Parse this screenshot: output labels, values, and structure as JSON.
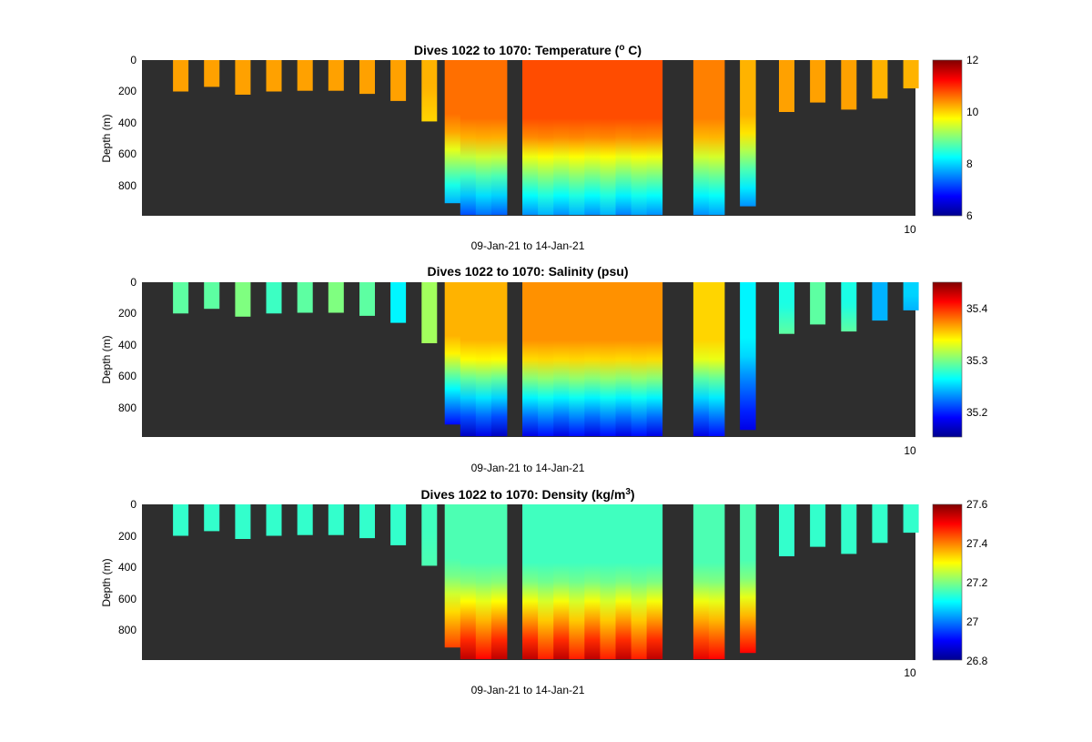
{
  "chart_data": [
    {
      "type": "heatmap",
      "title": "Dives 1022 to 1070: Temperature (",
      "title_sup": "o",
      "title_end": " C)",
      "xlabel": "09-Jan-21 to 14-Jan-21",
      "ylabel": "Depth (m)",
      "y_ticks": [
        "0",
        "200",
        "400",
        "600",
        "800"
      ],
      "ylim": [
        0,
        990
      ],
      "colorbar": {
        "ticks": [
          "6",
          "8",
          "10",
          "12"
        ],
        "range": [
          6,
          12
        ]
      },
      "x_tick_label": "10",
      "columns": [
        {
          "x": 0.25,
          "depth": 200,
          "surf": 10.3,
          "deep": 10.3
        },
        {
          "x": 0.75,
          "depth": 170,
          "surf": 10.3,
          "deep": 10.3
        },
        {
          "x": 1.25,
          "depth": 220,
          "surf": 10.3,
          "deep": 10.3
        },
        {
          "x": 1.75,
          "depth": 200,
          "surf": 10.3,
          "deep": 10.3
        },
        {
          "x": 2.25,
          "depth": 195,
          "surf": 10.3,
          "deep": 10.3
        },
        {
          "x": 2.75,
          "depth": 195,
          "surf": 10.3,
          "deep": 10.3
        },
        {
          "x": 3.25,
          "depth": 215,
          "surf": 10.3,
          "deep": 10.3
        },
        {
          "x": 3.75,
          "depth": 260,
          "surf": 10.3,
          "deep": 10.3
        },
        {
          "x": 4.25,
          "depth": 390,
          "surf": 10.2,
          "deep": 10.0
        },
        {
          "x": 4.75,
          "depth": 910,
          "surf": 10.6,
          "deep": 7.8
        },
        {
          "x": 5.0,
          "depth": 985,
          "surf": 10.6,
          "deep": 7.2
        },
        {
          "x": 5.25,
          "depth": 985,
          "surf": 10.6,
          "deep": 7.4
        },
        {
          "x": 5.5,
          "depth": 985,
          "surf": 10.6,
          "deep": 7.3
        },
        {
          "x": 6.0,
          "depth": 985,
          "surf": 10.8,
          "deep": 7.6
        },
        {
          "x": 6.25,
          "depth": 985,
          "surf": 10.8,
          "deep": 7.8
        },
        {
          "x": 6.5,
          "depth": 985,
          "surf": 10.8,
          "deep": 7.6
        },
        {
          "x": 6.75,
          "depth": 985,
          "surf": 10.8,
          "deep": 7.8
        },
        {
          "x": 7.0,
          "depth": 985,
          "surf": 10.8,
          "deep": 7.6
        },
        {
          "x": 7.25,
          "depth": 985,
          "surf": 10.8,
          "deep": 7.8
        },
        {
          "x": 7.5,
          "depth": 985,
          "surf": 10.8,
          "deep": 7.5
        },
        {
          "x": 7.75,
          "depth": 985,
          "surf": 10.8,
          "deep": 7.7
        },
        {
          "x": 8.0,
          "depth": 985,
          "surf": 10.8,
          "deep": 7.6
        },
        {
          "x": 8.75,
          "depth": 985,
          "surf": 10.5,
          "deep": 7.6
        },
        {
          "x": 9.0,
          "depth": 985,
          "surf": 10.5,
          "deep": 7.7
        },
        {
          "x": 9.5,
          "depth": 930,
          "surf": 10.2,
          "deep": 7.6
        },
        {
          "x": 10.0,
          "depth": 330,
          "surf": 10.3,
          "deep": 10.3
        },
        {
          "x": 10.5,
          "depth": 270,
          "surf": 10.3,
          "deep": 10.3
        },
        {
          "x": 11.0,
          "depth": 315,
          "surf": 10.3,
          "deep": 10.3
        },
        {
          "x": 11.5,
          "depth": 245,
          "surf": 10.2,
          "deep": 10.2
        },
        {
          "x": 12.0,
          "depth": 180,
          "surf": 10.2,
          "deep": 10.2
        }
      ]
    },
    {
      "type": "heatmap",
      "title": "Dives 1022 to 1070: Salinity (psu)",
      "xlabel": "09-Jan-21 to 14-Jan-21",
      "ylabel": "Depth (m)",
      "y_ticks": [
        "0",
        "200",
        "400",
        "600",
        "800"
      ],
      "ylim": [
        0,
        990
      ],
      "colorbar": {
        "ticks": [
          "35.2",
          "35.3",
          "35.4"
        ],
        "range": [
          35.15,
          35.45
        ]
      },
      "x_tick_label": "10",
      "columns": [
        {
          "x": 0.25,
          "depth": 200,
          "surf": 35.29,
          "deep": 35.29
        },
        {
          "x": 0.75,
          "depth": 170,
          "surf": 35.29,
          "deep": 35.29
        },
        {
          "x": 1.25,
          "depth": 220,
          "surf": 35.3,
          "deep": 35.3
        },
        {
          "x": 1.75,
          "depth": 200,
          "surf": 35.28,
          "deep": 35.28
        },
        {
          "x": 2.25,
          "depth": 195,
          "surf": 35.29,
          "deep": 35.29
        },
        {
          "x": 2.75,
          "depth": 195,
          "surf": 35.3,
          "deep": 35.3
        },
        {
          "x": 3.25,
          "depth": 215,
          "surf": 35.29,
          "deep": 35.29
        },
        {
          "x": 3.75,
          "depth": 260,
          "surf": 35.26,
          "deep": 35.26
        },
        {
          "x": 4.25,
          "depth": 390,
          "surf": 35.31,
          "deep": 35.31
        },
        {
          "x": 4.75,
          "depth": 910,
          "surf": 35.36,
          "deep": 35.19
        },
        {
          "x": 5.0,
          "depth": 985,
          "surf": 35.36,
          "deep": 35.17
        },
        {
          "x": 5.25,
          "depth": 985,
          "surf": 35.36,
          "deep": 35.18
        },
        {
          "x": 5.5,
          "depth": 985,
          "surf": 35.36,
          "deep": 35.17
        },
        {
          "x": 6.0,
          "depth": 985,
          "surf": 35.37,
          "deep": 35.18
        },
        {
          "x": 6.25,
          "depth": 985,
          "surf": 35.37,
          "deep": 35.19
        },
        {
          "x": 6.5,
          "depth": 985,
          "surf": 35.37,
          "deep": 35.18
        },
        {
          "x": 6.75,
          "depth": 985,
          "surf": 35.37,
          "deep": 35.19
        },
        {
          "x": 7.0,
          "depth": 985,
          "surf": 35.37,
          "deep": 35.18
        },
        {
          "x": 7.25,
          "depth": 985,
          "surf": 35.37,
          "deep": 35.19
        },
        {
          "x": 7.5,
          "depth": 985,
          "surf": 35.37,
          "deep": 35.18
        },
        {
          "x": 7.75,
          "depth": 985,
          "surf": 35.37,
          "deep": 35.19
        },
        {
          "x": 8.0,
          "depth": 985,
          "surf": 35.37,
          "deep": 35.18
        },
        {
          "x": 8.75,
          "depth": 985,
          "surf": 35.35,
          "deep": 35.18
        },
        {
          "x": 9.0,
          "depth": 985,
          "surf": 35.35,
          "deep": 35.19
        },
        {
          "x": 9.5,
          "depth": 945,
          "surf": 35.26,
          "deep": 35.18
        },
        {
          "x": 10.0,
          "depth": 330,
          "surf": 35.27,
          "deep": 35.29
        },
        {
          "x": 10.5,
          "depth": 270,
          "surf": 35.29,
          "deep": 35.29
        },
        {
          "x": 11.0,
          "depth": 315,
          "surf": 35.27,
          "deep": 35.29
        },
        {
          "x": 11.5,
          "depth": 245,
          "surf": 35.24,
          "deep": 35.24
        },
        {
          "x": 12.0,
          "depth": 180,
          "surf": 35.25,
          "deep": 35.24
        }
      ]
    },
    {
      "type": "heatmap",
      "title": "Dives 1022 to 1070: Density (kg/m",
      "title_sup": "3",
      "title_end": ")",
      "xlabel": "09-Jan-21 to 14-Jan-21",
      "ylabel": "Depth (m)",
      "y_ticks": [
        "0",
        "200",
        "400",
        "600",
        "800"
      ],
      "ylim": [
        0,
        990
      ],
      "colorbar": {
        "ticks": [
          "26.8",
          "27",
          "27.2",
          "27.4",
          "27.6"
        ],
        "range": [
          26.8,
          27.6
        ]
      },
      "x_tick_label": "10",
      "columns": [
        {
          "x": 0.25,
          "depth": 200,
          "surf": 27.14,
          "deep": 27.14
        },
        {
          "x": 0.75,
          "depth": 170,
          "surf": 27.14,
          "deep": 27.14
        },
        {
          "x": 1.25,
          "depth": 220,
          "surf": 27.14,
          "deep": 27.14
        },
        {
          "x": 1.75,
          "depth": 200,
          "surf": 27.14,
          "deep": 27.14
        },
        {
          "x": 2.25,
          "depth": 195,
          "surf": 27.14,
          "deep": 27.14
        },
        {
          "x": 2.75,
          "depth": 195,
          "surf": 27.14,
          "deep": 27.14
        },
        {
          "x": 3.25,
          "depth": 215,
          "surf": 27.14,
          "deep": 27.14
        },
        {
          "x": 3.75,
          "depth": 260,
          "surf": 27.14,
          "deep": 27.14
        },
        {
          "x": 4.25,
          "depth": 390,
          "surf": 27.15,
          "deep": 27.16
        },
        {
          "x": 4.75,
          "depth": 910,
          "surf": 27.16,
          "deep": 27.45
        },
        {
          "x": 5.0,
          "depth": 985,
          "surf": 27.16,
          "deep": 27.55
        },
        {
          "x": 5.25,
          "depth": 985,
          "surf": 27.16,
          "deep": 27.5
        },
        {
          "x": 5.5,
          "depth": 985,
          "surf": 27.16,
          "deep": 27.55
        },
        {
          "x": 6.0,
          "depth": 985,
          "surf": 27.15,
          "deep": 27.55
        },
        {
          "x": 6.25,
          "depth": 985,
          "surf": 27.15,
          "deep": 27.48
        },
        {
          "x": 6.5,
          "depth": 985,
          "surf": 27.15,
          "deep": 27.55
        },
        {
          "x": 6.75,
          "depth": 985,
          "surf": 27.15,
          "deep": 27.48
        },
        {
          "x": 7.0,
          "depth": 985,
          "surf": 27.15,
          "deep": 27.55
        },
        {
          "x": 7.25,
          "depth": 985,
          "surf": 27.15,
          "deep": 27.48
        },
        {
          "x": 7.5,
          "depth": 985,
          "surf": 27.15,
          "deep": 27.55
        },
        {
          "x": 7.75,
          "depth": 985,
          "surf": 27.15,
          "deep": 27.48
        },
        {
          "x": 8.0,
          "depth": 985,
          "surf": 27.15,
          "deep": 27.55
        },
        {
          "x": 8.75,
          "depth": 985,
          "surf": 27.16,
          "deep": 27.52
        },
        {
          "x": 9.0,
          "depth": 985,
          "surf": 27.16,
          "deep": 27.5
        },
        {
          "x": 9.5,
          "depth": 945,
          "surf": 27.16,
          "deep": 27.5
        },
        {
          "x": 10.0,
          "depth": 330,
          "surf": 27.14,
          "deep": 27.14
        },
        {
          "x": 10.5,
          "depth": 270,
          "surf": 27.14,
          "deep": 27.14
        },
        {
          "x": 11.0,
          "depth": 315,
          "surf": 27.14,
          "deep": 27.14
        },
        {
          "x": 11.5,
          "depth": 245,
          "surf": 27.14,
          "deep": 27.14
        },
        {
          "x": 12.0,
          "depth": 180,
          "surf": 27.14,
          "deep": 27.14
        }
      ]
    }
  ]
}
